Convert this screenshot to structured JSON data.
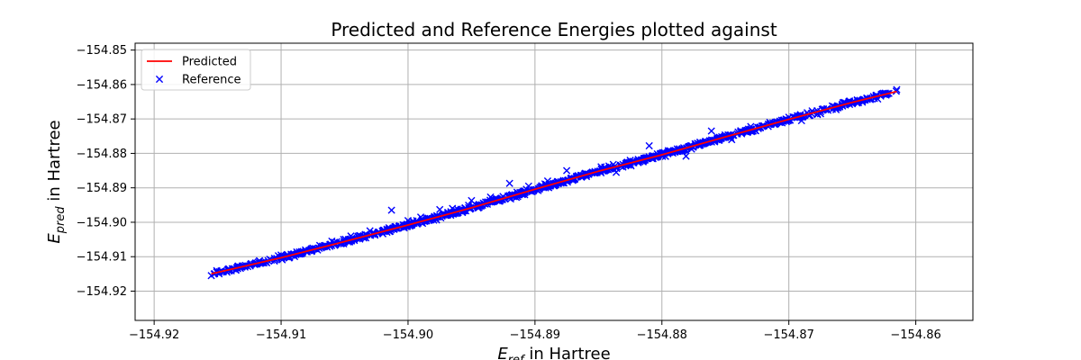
{
  "chart_data": {
    "type": "scatter",
    "title": "Predicted and Reference Energies plotted against",
    "xlabel": "E_ref in Hartree",
    "ylabel": "E_pred in Hartree",
    "xlim": [
      -154.9215,
      -154.8555
    ],
    "ylim": [
      -154.9285,
      -154.848
    ],
    "x_ticks": [
      -154.92,
      -154.91,
      -154.9,
      -154.89,
      -154.88,
      -154.87,
      -154.86
    ],
    "x_tick_labels": [
      "−154.92",
      "−154.91",
      "−154.90",
      "−154.89",
      "−154.88",
      "−154.87",
      "−154.86"
    ],
    "y_ticks": [
      -154.92,
      -154.91,
      -154.9,
      -154.89,
      -154.88,
      -154.87,
      -154.86,
      -154.85
    ],
    "y_tick_labels": [
      "−154.92",
      "−154.91",
      "−154.90",
      "−154.89",
      "−154.88",
      "−154.87",
      "−154.86",
      "−154.85"
    ],
    "grid": true,
    "legend_position": "top-left",
    "series": [
      {
        "name": "Predicted",
        "kind": "line",
        "color": "#ff0000",
        "x": [
          -154.9155,
          -154.91,
          -154.905,
          -154.9,
          -154.895,
          -154.89,
          -154.885,
          -154.88,
          -154.875,
          -154.87,
          -154.865,
          -154.8615
        ],
        "y": [
          -154.915,
          -154.9103,
          -154.9056,
          -154.9008,
          -154.8958,
          -154.8904,
          -154.8852,
          -154.8804,
          -154.8752,
          -154.8701,
          -154.8652,
          -154.862
        ]
      },
      {
        "name": "Reference",
        "kind": "scatter",
        "marker": "x",
        "color": "#0000ff",
        "x": [
          -154.9155,
          -154.9135,
          -154.912,
          -154.9112,
          -154.91,
          -154.909,
          -154.9075,
          -154.906,
          -154.9045,
          -154.903,
          -154.9015,
          -154.9013,
          -154.9,
          -154.899,
          -154.8975,
          -154.8965,
          -154.895,
          -154.8935,
          -154.892,
          -154.8905,
          -154.889,
          -154.8875,
          -154.886,
          -154.8845,
          -154.8836,
          -154.8825,
          -154.881,
          -154.8808,
          -154.8795,
          -154.8781,
          -154.877,
          -154.8761,
          -154.8745,
          -154.874,
          -154.873,
          -154.8715,
          -154.87,
          -154.869,
          -154.8675,
          -154.866,
          -154.8645,
          -154.863,
          -154.8615
        ],
        "y": [
          -154.9155,
          -154.9132,
          -154.9118,
          -154.9116,
          -154.9095,
          -154.9092,
          -154.9075,
          -154.9055,
          -154.904,
          -154.9025,
          -154.9016,
          -154.8965,
          -154.8995,
          -154.8985,
          -154.8963,
          -154.896,
          -154.8937,
          -154.8927,
          -154.8887,
          -154.8895,
          -154.888,
          -154.885,
          -154.886,
          -154.884,
          -154.8855,
          -154.882,
          -154.8778,
          -154.8815,
          -154.8792,
          -154.8808,
          -154.8768,
          -154.8735,
          -154.876,
          -154.8738,
          -154.8722,
          -154.871,
          -154.8695,
          -154.8705,
          -154.8685,
          -154.8665,
          -154.8648,
          -154.8642,
          -154.8615
        ]
      }
    ],
    "band": {
      "name": "Reference",
      "count": 900,
      "noise": 0.0007,
      "color": "#0000ff"
    }
  }
}
